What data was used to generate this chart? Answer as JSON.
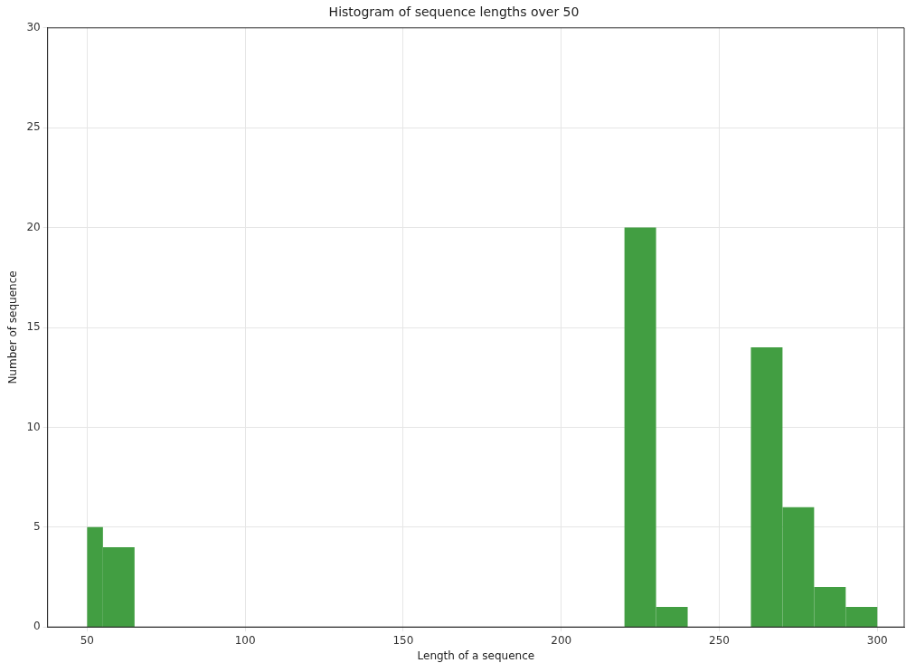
{
  "chart_data": {
    "type": "histogram",
    "title": "Histogram of sequence lengths over 50",
    "xlabel": "Length of a sequence",
    "ylabel": "Number of sequence",
    "bins": [
      50,
      55,
      65,
      220,
      230,
      240,
      260,
      270,
      280,
      290,
      300
    ],
    "values": [
      5,
      4,
      0,
      20,
      1,
      0,
      14,
      6,
      2,
      1
    ],
    "color": "#429e42",
    "xlim": [
      37.5,
      308.5
    ],
    "xticks": [
      50,
      100,
      150,
      200,
      250,
      300
    ],
    "ylim": [
      0,
      30
    ],
    "yticks": [
      0,
      5,
      10,
      15,
      20,
      25,
      30
    ],
    "grid": true
  }
}
